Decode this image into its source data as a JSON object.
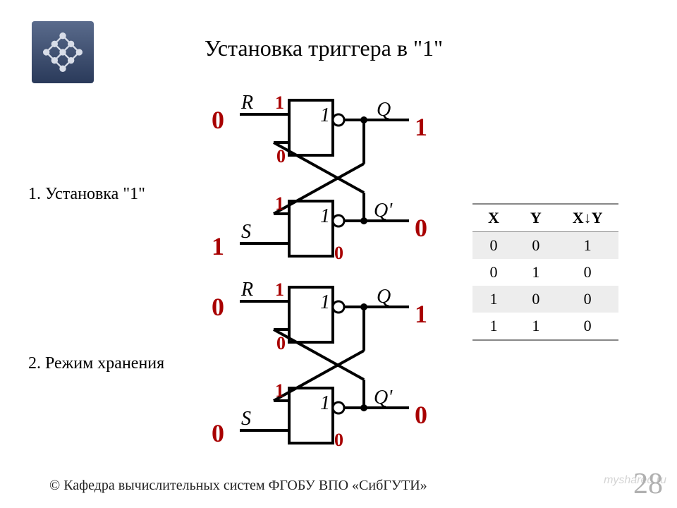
{
  "title": "Установка триггера в \"1\"",
  "caption1": "1. Установка \"1\"",
  "caption2": "2. Режим хранения",
  "footer": "© Кафедра вычислительных систем ФГОБУ ВПО «СибГУТИ»",
  "pagenum": "28",
  "watermark": "myshared.ru",
  "table": {
    "headers": [
      "X",
      "Y",
      "X↓Y"
    ],
    "rows": [
      {
        "cells": [
          "0",
          "0",
          "1"
        ],
        "alt": true
      },
      {
        "cells": [
          "0",
          "1",
          "0"
        ],
        "alt": false
      },
      {
        "cells": [
          "1",
          "0",
          "0"
        ],
        "alt": true
      },
      {
        "cells": [
          "1",
          "1",
          "0"
        ],
        "alt": false
      }
    ]
  },
  "diagram": {
    "colors": {
      "black": "#000000",
      "red": "#a80000",
      "line_width": 4
    },
    "labels": {
      "R": "R",
      "S": "S",
      "Q": "Q",
      "Qp": "Q'",
      "gate_symbol": "1"
    },
    "d1": {
      "R": "0",
      "S": "1",
      "topA": "1",
      "midR": "0",
      "Qout": "1",
      "botA": "1",
      "botB": "0",
      "Qpout": "0"
    },
    "d2": {
      "R": "0",
      "S": "0",
      "topA": "1",
      "midR": "0",
      "Qout": "1",
      "botA": "1",
      "botB": "0",
      "Qpout": "0"
    },
    "gate": {
      "w": 62,
      "h": 78
    },
    "font": {
      "label_pt": 28,
      "big_pt": 36,
      "sig_pt": 26
    }
  }
}
